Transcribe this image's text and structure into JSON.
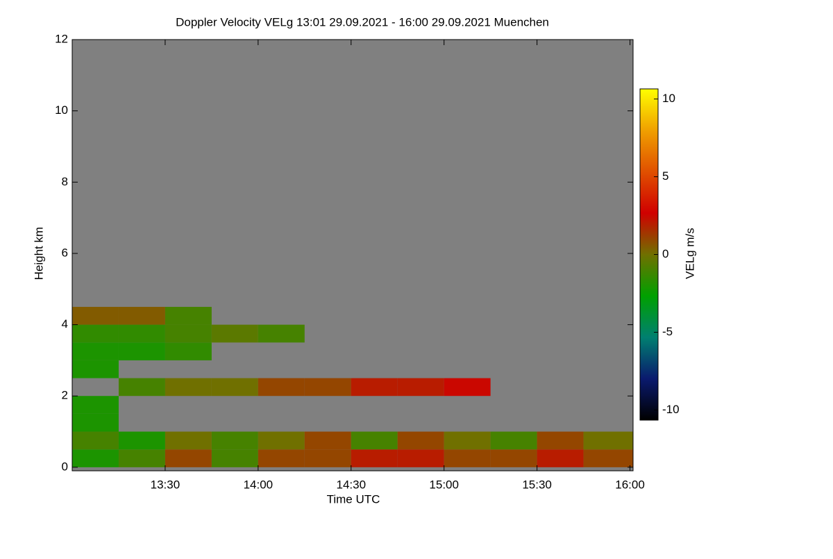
{
  "chart_data": {
    "type": "heatmap",
    "title": "Doppler Velocity VELg   13:01 29.09.2021 - 16:00 29.09.2021 Muenchen",
    "xlabel": "Time UTC",
    "ylabel": "Height km",
    "colorbar_label": "VELg m/s",
    "xlim": [
      13.0,
      16.0167
    ],
    "xticks": [
      {
        "value": 13.5,
        "label": "13:30"
      },
      {
        "value": 14.0,
        "label": "14:00"
      },
      {
        "value": 14.5,
        "label": "14:30"
      },
      {
        "value": 15.0,
        "label": "15:00"
      },
      {
        "value": 15.5,
        "label": "15:30"
      },
      {
        "value": 16.0,
        "label": "16:00"
      }
    ],
    "ylim": [
      -0.1,
      12
    ],
    "yticks": [
      0,
      2,
      4,
      6,
      8,
      10,
      12
    ],
    "zlim": [
      -10.65,
      10.65
    ],
    "zticks": [
      -10,
      -5,
      0,
      5,
      10
    ],
    "colormap": [
      "#000000",
      "#0a1a6e",
      "#008070",
      "#00a000",
      "#707000",
      "#d00000",
      "#e05000",
      "#f0a000",
      "#ffff00"
    ],
    "background": "#808080",
    "xbins": [
      13.0,
      13.25,
      13.5,
      13.75,
      14.0,
      14.25,
      14.5,
      14.75,
      15.0,
      15.25,
      15.5,
      15.75,
      16.0167
    ],
    "ybins": [
      0,
      0.5,
      1.0,
      1.5,
      2.0,
      2.5,
      3.0,
      3.5,
      4.0,
      4.5
    ],
    "z": [
      [
        -2,
        -1,
        1,
        -1,
        1,
        1,
        2,
        2,
        1,
        1,
        2,
        1
      ],
      [
        -1,
        -2,
        0,
        -1,
        0,
        1,
        -1,
        1,
        0,
        -1,
        1,
        0
      ],
      [
        -2,
        null,
        null,
        null,
        null,
        null,
        null,
        null,
        null,
        null,
        null,
        null
      ],
      [
        -2,
        null,
        null,
        null,
        null,
        null,
        null,
        null,
        null,
        null,
        null,
        null
      ],
      [
        null,
        -1,
        0,
        0,
        1,
        1,
        2,
        2,
        2.5,
        null,
        null,
        null
      ],
      [
        -2,
        null,
        null,
        null,
        null,
        null,
        null,
        null,
        null,
        null,
        null,
        null
      ],
      [
        -2,
        -2,
        -1.5,
        null,
        null,
        null,
        null,
        null,
        null,
        null,
        null,
        null
      ],
      [
        -1.5,
        -1.5,
        -1,
        -0.5,
        -1,
        null,
        null,
        null,
        null,
        null,
        null,
        null
      ],
      [
        0.5,
        0.5,
        -1,
        null,
        null,
        null,
        null,
        null,
        null,
        null,
        null,
        null
      ]
    ]
  }
}
